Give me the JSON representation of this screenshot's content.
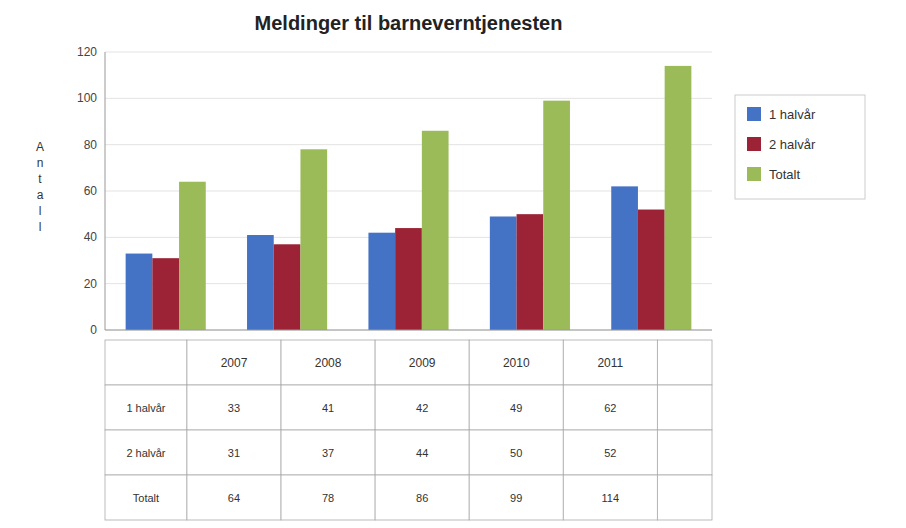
{
  "chart_data": {
    "type": "bar",
    "title": "Meldinger til barneverntjenesten",
    "y_label": "Antall",
    "categories": [
      "2007",
      "2008",
      "2009",
      "2010",
      "2011"
    ],
    "series": [
      {
        "name": "1 halvår",
        "color": "#4472C4",
        "values": [
          33,
          41,
          42,
          49,
          62
        ]
      },
      {
        "name": "2 halvår",
        "color": "#9B2335",
        "values": [
          31,
          37,
          44,
          50,
          52
        ]
      },
      {
        "name": "Totalt",
        "color": "#9BBB59",
        "values": [
          64,
          78,
          86,
          99,
          114
        ]
      }
    ],
    "ylim": [
      0,
      120
    ],
    "yticks": [
      0,
      20,
      40,
      60,
      80,
      100,
      120
    ],
    "grid": true,
    "legend": "right"
  }
}
